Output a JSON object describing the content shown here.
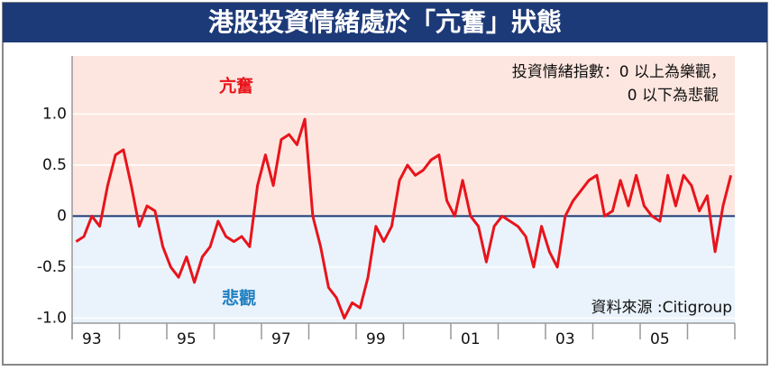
{
  "chart_data": {
    "type": "line",
    "title": "港股投資情緒處於「亢奮」狀態",
    "positive_label": "亢奮",
    "negative_label": "悲觀",
    "note": [
      "投資情緒指數：0 以上為樂觀，",
      "0 以下為悲觀"
    ],
    "source": "資料來源 :Citigroup",
    "color": "#e8141c",
    "categories": [
      null,
      null,
      "93",
      null,
      null,
      null,
      null,
      null,
      null,
      null,
      null,
      null,
      null,
      null,
      "95",
      null,
      null,
      null,
      null,
      null,
      null,
      null,
      null,
      null,
      null,
      null,
      "97",
      null,
      null,
      null,
      null,
      null,
      null,
      null,
      null,
      null,
      null,
      null,
      "99",
      null,
      null,
      null,
      null,
      null,
      null,
      null,
      null,
      null,
      null,
      null,
      "01",
      null,
      null,
      null,
      null,
      null,
      null,
      null,
      null,
      null,
      null,
      null,
      "03",
      null,
      null,
      null,
      null,
      null,
      null,
      null,
      null,
      null,
      null,
      null,
      "05",
      null,
      null,
      null,
      null,
      null,
      null,
      null,
      null,
      null
    ],
    "values": [
      -0.25,
      -0.2,
      0.0,
      -0.1,
      0.3,
      0.6,
      0.65,
      0.3,
      -0.1,
      0.1,
      0.05,
      -0.3,
      -0.5,
      -0.6,
      -0.4,
      -0.65,
      -0.4,
      -0.3,
      -0.05,
      -0.2,
      -0.25,
      -0.2,
      -0.3,
      0.3,
      0.6,
      0.3,
      0.75,
      0.8,
      0.7,
      0.95,
      0.0,
      -0.3,
      -0.7,
      -0.8,
      -1.0,
      -0.85,
      -0.9,
      -0.6,
      -0.1,
      -0.25,
      -0.1,
      0.35,
      0.5,
      0.4,
      0.45,
      0.55,
      0.6,
      0.15,
      0.0,
      0.35,
      0.0,
      -0.1,
      -0.45,
      -0.1,
      0.0,
      -0.05,
      -0.1,
      -0.2,
      -0.5,
      -0.1,
      -0.35,
      -0.5,
      0.0,
      0.15,
      0.25,
      0.35,
      0.4,
      0.0,
      0.05,
      0.35,
      0.1,
      0.4,
      0.1,
      0.0,
      -0.05,
      0.4,
      0.1,
      0.4,
      0.3,
      0.05,
      0.2,
      -0.35,
      0.1,
      0.4
    ],
    "ylim": [
      -1.05,
      1.57
    ],
    "yticks": [
      {
        "value": 1,
        "label": "1.0"
      },
      0.5,
      0,
      -0.5,
      {
        "value": -1,
        "label": "-1.0"
      }
    ],
    "grid": true
  }
}
